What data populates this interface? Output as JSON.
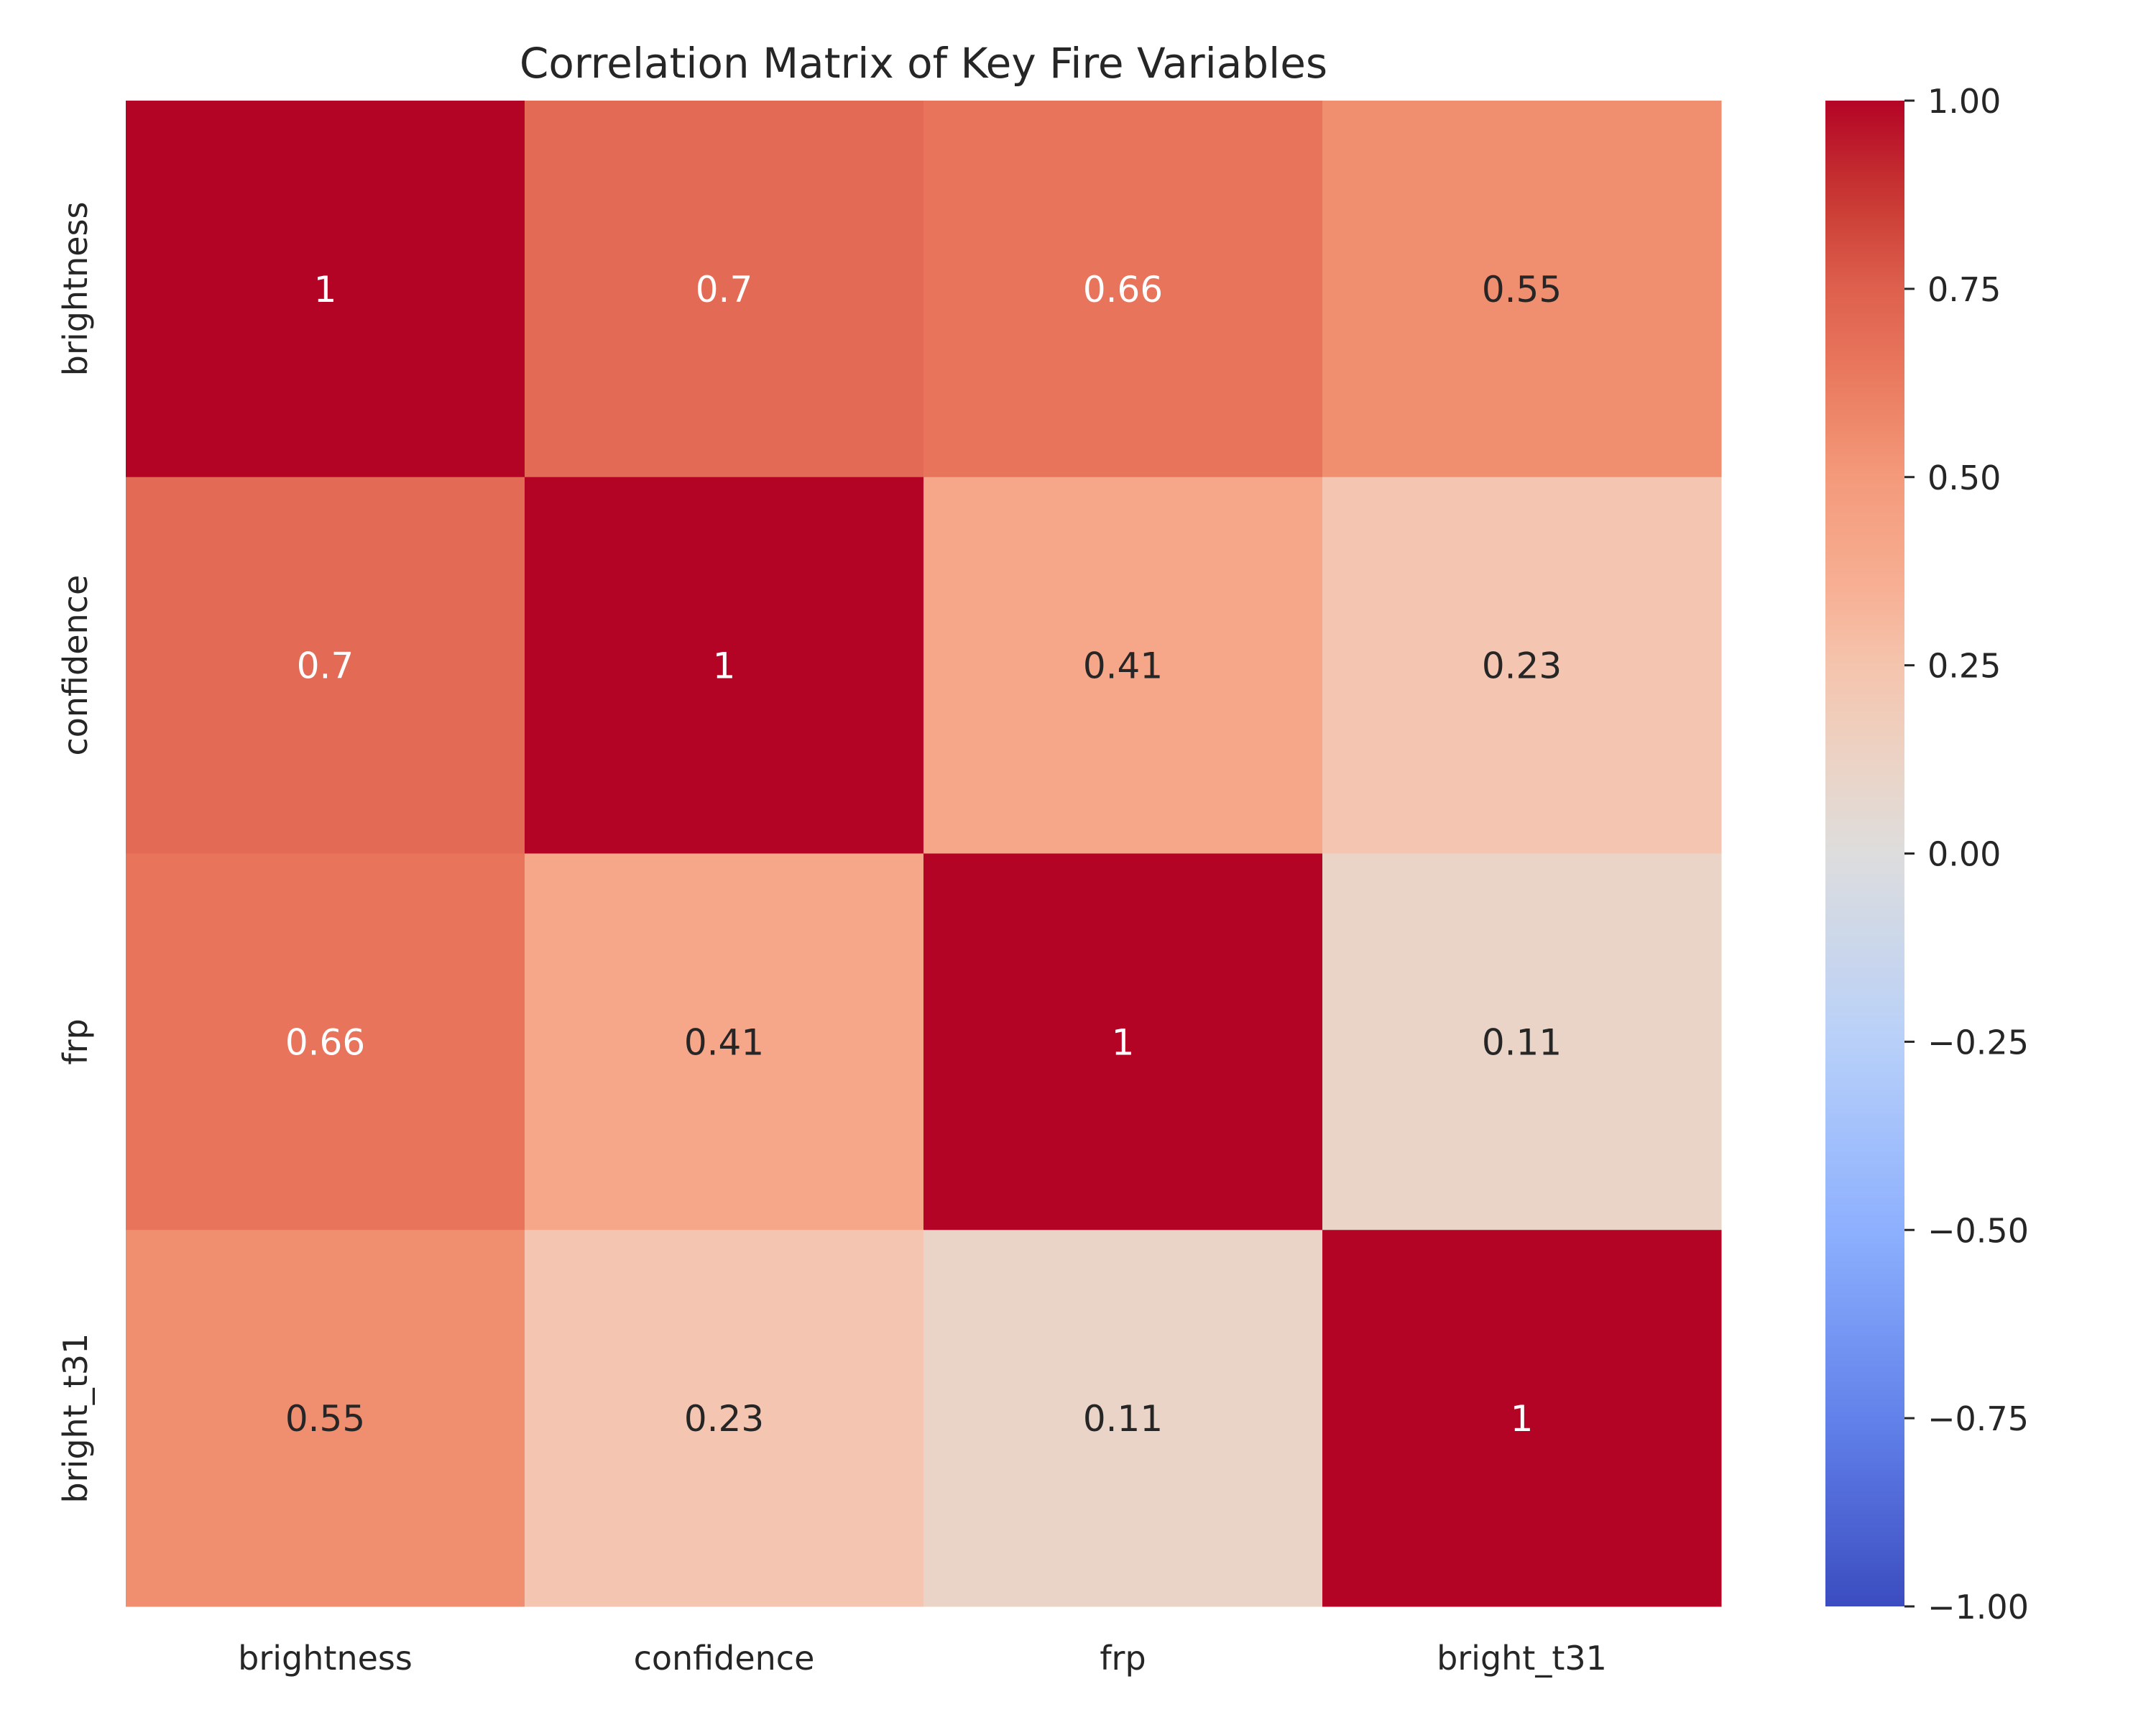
{
  "chart_data": {
    "type": "heatmap",
    "title": "Correlation Matrix of Key Fire Variables",
    "xlabel": "",
    "ylabel": "",
    "x_labels": [
      "brightness",
      "confidence",
      "frp",
      "bright_t31"
    ],
    "y_labels": [
      "brightness",
      "confidence",
      "frp",
      "bright_t31"
    ],
    "matrix": [
      [
        1.0,
        0.7,
        0.66,
        0.55
      ],
      [
        0.7,
        1.0,
        0.41,
        0.23
      ],
      [
        0.66,
        0.41,
        1.0,
        0.11
      ],
      [
        0.55,
        0.23,
        0.11,
        1.0
      ]
    ],
    "annotations": [
      [
        "1",
        "0.7",
        "0.66",
        "0.55"
      ],
      [
        "0.7",
        "1",
        "0.41",
        "0.23"
      ],
      [
        "0.66",
        "0.41",
        "1",
        "0.11"
      ],
      [
        "0.55",
        "0.23",
        "0.11",
        "1"
      ]
    ],
    "colormap": "coolwarm",
    "vmin": -1.0,
    "vmax": 1.0,
    "colorbar_ticks": [
      1.0,
      0.75,
      0.5,
      0.25,
      0.0,
      -0.25,
      -0.5,
      -0.75,
      -1.0
    ],
    "colorbar_tick_labels": [
      "1.00",
      "0.75",
      "0.50",
      "0.25",
      "0.00",
      "−0.25",
      "−0.50",
      "−0.75",
      "−1.00"
    ],
    "grid": false
  }
}
